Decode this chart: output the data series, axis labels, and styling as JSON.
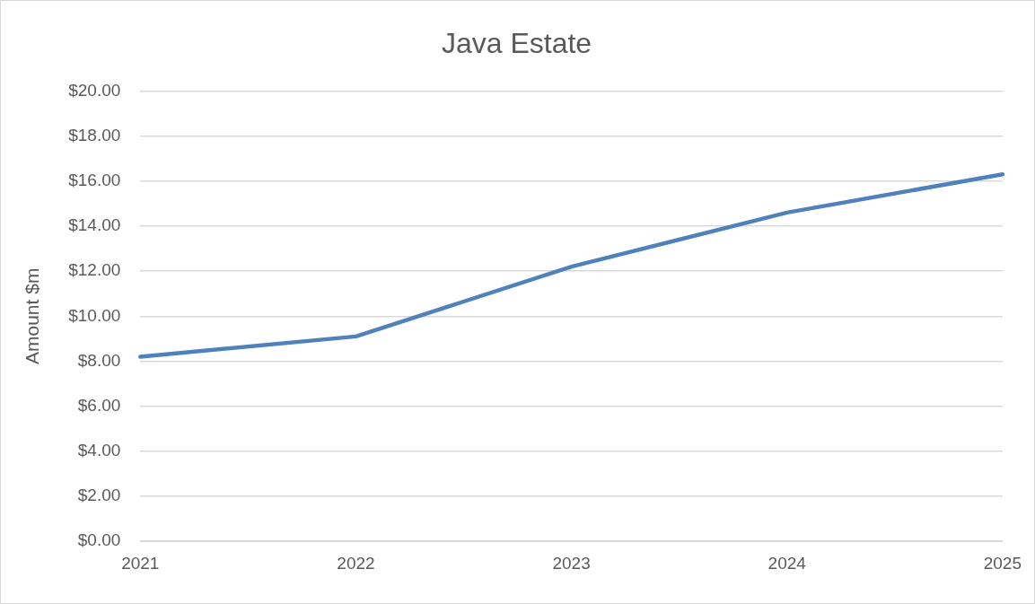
{
  "chart_data": {
    "type": "line",
    "title": "Java Estate",
    "ylabel": "Amount $m",
    "categories": [
      "2021",
      "2022",
      "2023",
      "2024",
      "2025"
    ],
    "series": [
      {
        "color": "#4f81bd",
        "values": [
          8.2,
          9.1,
          12.2,
          14.6,
          16.3
        ]
      }
    ],
    "ylim": [
      0,
      20
    ],
    "yticks": [
      {
        "value": 0,
        "label": "$0.00"
      },
      {
        "value": 2,
        "label": "$2.00"
      },
      {
        "value": 4,
        "label": "$4.00"
      },
      {
        "value": 6,
        "label": "$6.00"
      },
      {
        "value": 8,
        "label": "$8.00"
      },
      {
        "value": 10,
        "label": "$10.00"
      },
      {
        "value": 12,
        "label": "$12.00"
      },
      {
        "value": 14,
        "label": "$14.00"
      },
      {
        "value": 16,
        "label": "$16.00"
      },
      {
        "value": 18,
        "label": "$18.00"
      },
      {
        "value": 20,
        "label": "$20.00"
      }
    ],
    "grid": "y",
    "legend": false,
    "marker": "none",
    "line_style": "solid"
  }
}
